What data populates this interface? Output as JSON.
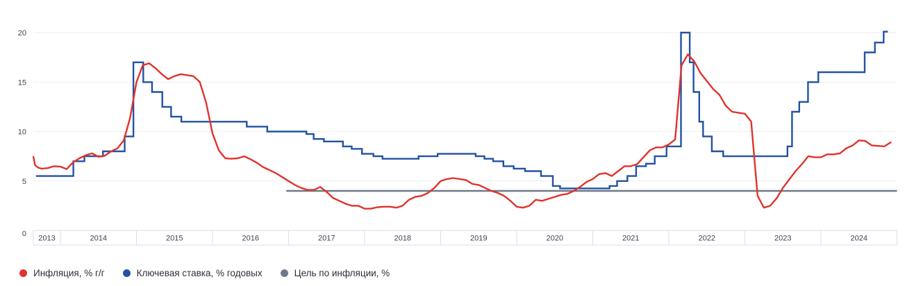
{
  "chart_data": {
    "type": "line",
    "title": "",
    "x_axis": {
      "kind": "year-band",
      "domain_start": 2013.644,
      "domain_end": 2025.0,
      "year_labels": [
        "2013",
        "2014",
        "2015",
        "2016",
        "2017",
        "2018",
        "2019",
        "2020",
        "2021",
        "2022",
        "2023",
        "2024"
      ]
    },
    "y_axis": {
      "min": 0,
      "max": 20,
      "ticks": [
        0,
        5,
        10,
        15,
        20
      ],
      "gridlines": [
        5,
        10,
        15,
        20
      ],
      "grid_on": true
    },
    "legend_position": "bottom-left",
    "series": [
      {
        "name": "Инфляция, % г/г",
        "type": "line",
        "color": "#e0322c",
        "points": [
          [
            2013.645,
            7.45
          ],
          [
            2013.667,
            6.6
          ],
          [
            2013.708,
            6.35
          ],
          [
            2013.75,
            6.25
          ],
          [
            2013.833,
            6.3
          ],
          [
            2013.917,
            6.5
          ],
          [
            2014.0,
            6.45
          ],
          [
            2014.083,
            6.2
          ],
          [
            2014.167,
            6.9
          ],
          [
            2014.25,
            7.3
          ],
          [
            2014.333,
            7.6
          ],
          [
            2014.417,
            7.8
          ],
          [
            2014.5,
            7.45
          ],
          [
            2014.583,
            7.55
          ],
          [
            2014.667,
            8.0
          ],
          [
            2014.75,
            8.3
          ],
          [
            2014.833,
            9.1
          ],
          [
            2014.917,
            11.4
          ],
          [
            2015.0,
            15.0
          ],
          [
            2015.083,
            16.7
          ],
          [
            2015.167,
            16.9
          ],
          [
            2015.25,
            16.4
          ],
          [
            2015.333,
            15.8
          ],
          [
            2015.417,
            15.3
          ],
          [
            2015.5,
            15.6
          ],
          [
            2015.583,
            15.8
          ],
          [
            2015.667,
            15.7
          ],
          [
            2015.75,
            15.6
          ],
          [
            2015.833,
            15.0
          ],
          [
            2015.917,
            12.9
          ],
          [
            2016.0,
            9.8
          ],
          [
            2016.083,
            8.1
          ],
          [
            2016.167,
            7.3
          ],
          [
            2016.25,
            7.25
          ],
          [
            2016.333,
            7.3
          ],
          [
            2016.417,
            7.5
          ],
          [
            2016.5,
            7.2
          ],
          [
            2016.583,
            6.85
          ],
          [
            2016.667,
            6.4
          ],
          [
            2016.75,
            6.1
          ],
          [
            2016.833,
            5.8
          ],
          [
            2016.917,
            5.4
          ],
          [
            2017.0,
            5.0
          ],
          [
            2017.083,
            4.6
          ],
          [
            2017.167,
            4.3
          ],
          [
            2017.25,
            4.1
          ],
          [
            2017.333,
            4.1
          ],
          [
            2017.417,
            4.4
          ],
          [
            2017.5,
            3.9
          ],
          [
            2017.583,
            3.3
          ],
          [
            2017.667,
            3.0
          ],
          [
            2017.75,
            2.7
          ],
          [
            2017.833,
            2.5
          ],
          [
            2017.917,
            2.5
          ],
          [
            2018.0,
            2.2
          ],
          [
            2018.083,
            2.2
          ],
          [
            2018.167,
            2.35
          ],
          [
            2018.25,
            2.4
          ],
          [
            2018.333,
            2.4
          ],
          [
            2018.417,
            2.3
          ],
          [
            2018.5,
            2.5
          ],
          [
            2018.583,
            3.1
          ],
          [
            2018.667,
            3.4
          ],
          [
            2018.75,
            3.5
          ],
          [
            2018.833,
            3.8
          ],
          [
            2018.917,
            4.3
          ],
          [
            2019.0,
            5.0
          ],
          [
            2019.083,
            5.2
          ],
          [
            2019.167,
            5.3
          ],
          [
            2019.25,
            5.2
          ],
          [
            2019.333,
            5.1
          ],
          [
            2019.417,
            4.7
          ],
          [
            2019.5,
            4.6
          ],
          [
            2019.583,
            4.3
          ],
          [
            2019.667,
            4.0
          ],
          [
            2019.75,
            3.8
          ],
          [
            2019.833,
            3.5
          ],
          [
            2019.917,
            3.0
          ],
          [
            2020.0,
            2.4
          ],
          [
            2020.083,
            2.3
          ],
          [
            2020.167,
            2.5
          ],
          [
            2020.25,
            3.1
          ],
          [
            2020.333,
            3.0
          ],
          [
            2020.417,
            3.2
          ],
          [
            2020.5,
            3.4
          ],
          [
            2020.583,
            3.6
          ],
          [
            2020.667,
            3.7
          ],
          [
            2020.75,
            4.0
          ],
          [
            2020.833,
            4.4
          ],
          [
            2020.917,
            4.9
          ],
          [
            2021.0,
            5.2
          ],
          [
            2021.083,
            5.7
          ],
          [
            2021.167,
            5.8
          ],
          [
            2021.25,
            5.5
          ],
          [
            2021.333,
            6.0
          ],
          [
            2021.417,
            6.5
          ],
          [
            2021.5,
            6.5
          ],
          [
            2021.583,
            6.7
          ],
          [
            2021.667,
            7.4
          ],
          [
            2021.75,
            8.1
          ],
          [
            2021.833,
            8.4
          ],
          [
            2021.917,
            8.4
          ],
          [
            2022.0,
            8.7
          ],
          [
            2022.083,
            9.2
          ],
          [
            2022.167,
            16.7
          ],
          [
            2022.25,
            17.8
          ],
          [
            2022.333,
            17.1
          ],
          [
            2022.417,
            15.9
          ],
          [
            2022.5,
            15.1
          ],
          [
            2022.583,
            14.3
          ],
          [
            2022.667,
            13.7
          ],
          [
            2022.75,
            12.6
          ],
          [
            2022.833,
            12.0
          ],
          [
            2022.917,
            11.9
          ],
          [
            2023.0,
            11.8
          ],
          [
            2023.083,
            11.0
          ],
          [
            2023.167,
            3.5
          ],
          [
            2023.25,
            2.3
          ],
          [
            2023.333,
            2.5
          ],
          [
            2023.417,
            3.25
          ],
          [
            2023.5,
            4.3
          ],
          [
            2023.583,
            5.15
          ],
          [
            2023.667,
            6.0
          ],
          [
            2023.75,
            6.7
          ],
          [
            2023.833,
            7.5
          ],
          [
            2023.917,
            7.4
          ],
          [
            2024.0,
            7.4
          ],
          [
            2024.083,
            7.7
          ],
          [
            2024.167,
            7.7
          ],
          [
            2024.25,
            7.8
          ],
          [
            2024.333,
            8.3
          ],
          [
            2024.417,
            8.6
          ],
          [
            2024.5,
            9.1
          ],
          [
            2024.583,
            9.05
          ],
          [
            2024.667,
            8.6
          ],
          [
            2024.75,
            8.55
          ],
          [
            2024.833,
            8.5
          ],
          [
            2024.917,
            8.9
          ]
        ]
      },
      {
        "name": "Ключевая ставка, % годовых",
        "type": "step",
        "color": "#2152a3",
        "steps": [
          [
            2013.68,
            5.5
          ],
          [
            2014.17,
            7.0
          ],
          [
            2014.315,
            7.5
          ],
          [
            2014.56,
            8.0
          ],
          [
            2014.845,
            9.5
          ],
          [
            2014.96,
            17.0
          ],
          [
            2015.09,
            15.0
          ],
          [
            2015.205,
            14.0
          ],
          [
            2015.34,
            12.5
          ],
          [
            2015.455,
            11.5
          ],
          [
            2015.59,
            11.0
          ],
          [
            2016.45,
            10.5
          ],
          [
            2016.72,
            10.0
          ],
          [
            2017.235,
            9.75
          ],
          [
            2017.33,
            9.25
          ],
          [
            2017.465,
            9.0
          ],
          [
            2017.715,
            8.5
          ],
          [
            2017.83,
            8.25
          ],
          [
            2017.965,
            7.75
          ],
          [
            2018.115,
            7.5
          ],
          [
            2018.235,
            7.25
          ],
          [
            2018.71,
            7.5
          ],
          [
            2018.96,
            7.75
          ],
          [
            2019.46,
            7.5
          ],
          [
            2019.575,
            7.25
          ],
          [
            2019.69,
            7.0
          ],
          [
            2019.825,
            6.5
          ],
          [
            2019.96,
            6.25
          ],
          [
            2020.11,
            6.0
          ],
          [
            2020.32,
            5.5
          ],
          [
            2020.475,
            4.5
          ],
          [
            2020.57,
            4.25
          ],
          [
            2021.22,
            4.5
          ],
          [
            2021.32,
            5.0
          ],
          [
            2021.455,
            5.5
          ],
          [
            2021.57,
            6.5
          ],
          [
            2021.7,
            6.75
          ],
          [
            2021.815,
            7.5
          ],
          [
            2021.97,
            8.5
          ],
          [
            2022.16,
            20.0
          ],
          [
            2022.275,
            17.0
          ],
          [
            2022.325,
            14.0
          ],
          [
            2022.4,
            11.0
          ],
          [
            2022.45,
            9.5
          ],
          [
            2022.565,
            8.0
          ],
          [
            2022.715,
            7.5
          ],
          [
            2023.56,
            8.5
          ],
          [
            2023.62,
            12.0
          ],
          [
            2023.715,
            13.0
          ],
          [
            2023.83,
            15.0
          ],
          [
            2023.965,
            16.0
          ],
          [
            2024.575,
            18.0
          ],
          [
            2024.71,
            19.0
          ],
          [
            2024.825,
            21.0
          ]
        ],
        "end_x": 2024.88
      },
      {
        "name": "Цель по инфляции, %",
        "type": "reference-line",
        "color": "#6f7987",
        "value": 4,
        "from_x": 2016.97,
        "to_x": 2025.0
      }
    ]
  },
  "colors": {
    "gridline": "#ededef",
    "axis_band_border": "#d9dfef",
    "tick_text": "#3e434b"
  }
}
